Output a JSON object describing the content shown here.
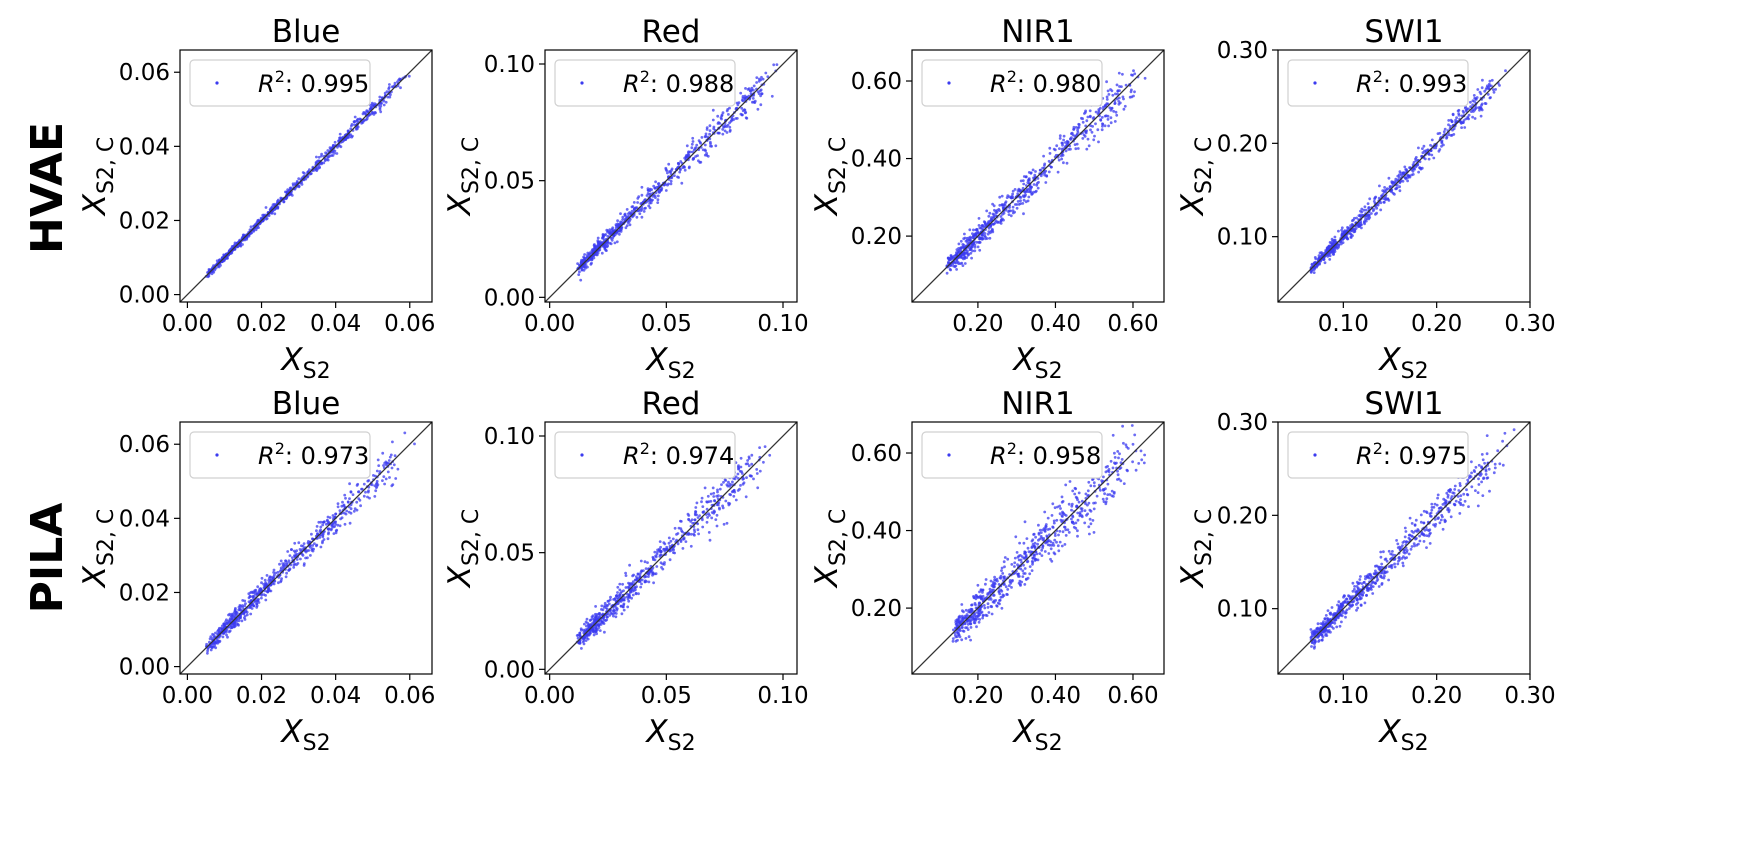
{
  "figure": {
    "row_labels": [
      "HVAE",
      "PILA"
    ],
    "xlabel": {
      "main": "X",
      "sub": "S2"
    },
    "ylabel": {
      "main": "X",
      "sub": "S2, C"
    },
    "point_color": "#3b3bf0",
    "identity_line_color": "#333333"
  },
  "chart_data": [
    {
      "type": "scatter",
      "row": "HVAE",
      "title": "Blue",
      "legend_label": "R",
      "legend_sup": "2",
      "r2": "0.995",
      "lim": [
        -0.002,
        0.066
      ],
      "ticks": [
        "0.00",
        "0.02",
        "0.04",
        "0.06"
      ],
      "tick_values": [
        0.0,
        0.02,
        0.04,
        0.06
      ],
      "spread": 0.0006,
      "min": 0.0,
      "max": 0.063
    },
    {
      "type": "scatter",
      "row": "HVAE",
      "title": "Red",
      "legend_label": "R",
      "legend_sup": "2",
      "r2": "0.988",
      "lim": [
        -0.002,
        0.106
      ],
      "ticks": [
        "0.00",
        "0.05",
        "0.10"
      ],
      "tick_values": [
        0.0,
        0.05,
        0.1
      ],
      "spread": 0.0022,
      "min": 0.004,
      "max": 0.102
    },
    {
      "type": "scatter",
      "row": "HVAE",
      "title": "NIR1",
      "legend_label": "R",
      "legend_sup": "2",
      "r2": "0.980",
      "lim": [
        0.03,
        0.68
      ],
      "ticks": [
        "0.20",
        "0.40",
        "0.60"
      ],
      "tick_values": [
        0.2,
        0.4,
        0.6
      ],
      "spread": 0.018,
      "min": 0.07,
      "max": 0.66
    },
    {
      "type": "scatter",
      "row": "HVAE",
      "title": "SWI1",
      "legend_label": "R",
      "legend_sup": "2",
      "r2": "0.993",
      "lim": [
        0.03,
        0.3
      ],
      "ticks": [
        "0.10",
        "0.20",
        "0.30"
      ],
      "tick_values": [
        0.1,
        0.2,
        0.3
      ],
      "spread": 0.0045,
      "min": 0.045,
      "max": 0.29
    },
    {
      "type": "scatter",
      "row": "PILA",
      "title": "Blue",
      "legend_label": "R",
      "legend_sup": "2",
      "r2": "0.973",
      "lim": [
        -0.002,
        0.066
      ],
      "ticks": [
        "0.00",
        "0.02",
        "0.04",
        "0.06"
      ],
      "tick_values": [
        0.0,
        0.02,
        0.04,
        0.06
      ],
      "spread": 0.0014,
      "min": 0.0,
      "max": 0.063
    },
    {
      "type": "scatter",
      "row": "PILA",
      "title": "Red",
      "legend_label": "R",
      "legend_sup": "2",
      "r2": "0.974",
      "lim": [
        -0.002,
        0.106
      ],
      "ticks": [
        "0.00",
        "0.05",
        "0.10"
      ],
      "tick_values": [
        0.0,
        0.05,
        0.1
      ],
      "spread": 0.0032,
      "min": 0.004,
      "max": 0.1
    },
    {
      "type": "scatter",
      "row": "PILA",
      "title": "NIR1",
      "legend_label": "R",
      "legend_sup": "2",
      "r2": "0.958",
      "lim": [
        0.03,
        0.68
      ],
      "ticks": [
        "0.20",
        "0.40",
        "0.60"
      ],
      "tick_values": [
        0.2,
        0.4,
        0.6
      ],
      "spread": 0.026,
      "min": 0.09,
      "max": 0.66
    },
    {
      "type": "scatter",
      "row": "PILA",
      "title": "SWI1",
      "legend_label": "R",
      "legend_sup": "2",
      "r2": "0.975",
      "lim": [
        0.03,
        0.3
      ],
      "ticks": [
        "0.10",
        "0.20",
        "0.30"
      ],
      "tick_values": [
        0.1,
        0.2,
        0.3
      ],
      "spread": 0.0075,
      "min": 0.045,
      "max": 0.29
    }
  ]
}
